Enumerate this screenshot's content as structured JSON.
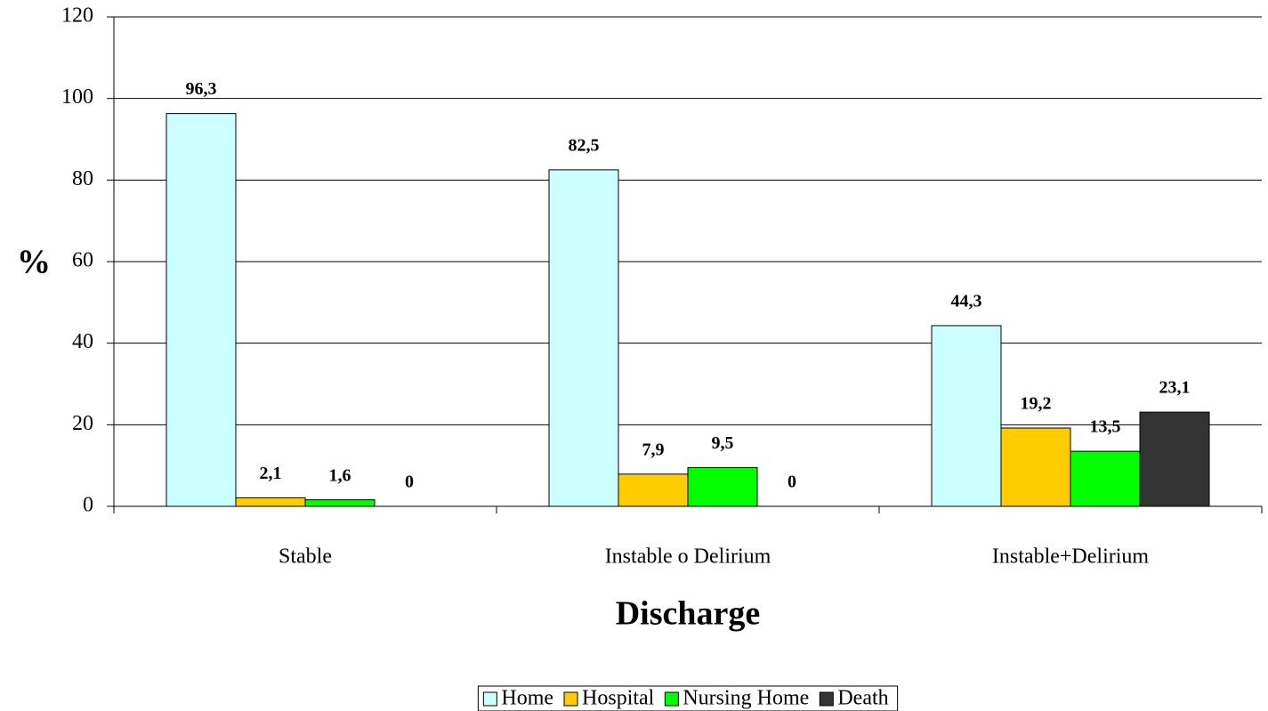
{
  "chart_data": {
    "type": "bar",
    "y_label": "%",
    "x_label": "Discharge",
    "categories": [
      "Stable",
      "Instable o Delirium",
      "Instable+Delirium"
    ],
    "series": [
      {
        "name": "Home",
        "color": "#ccffff",
        "values": [
          96.3,
          82.5,
          44.3
        ],
        "value_labels": [
          "96,3",
          "82,5",
          "44,3"
        ]
      },
      {
        "name": "Hospital",
        "color": "#ffcc00",
        "values": [
          2.1,
          7.9,
          19.2
        ],
        "value_labels": [
          "2,1",
          "7,9",
          "19,2"
        ]
      },
      {
        "name": "Nursing Home",
        "color": "#00ff00",
        "values": [
          1.6,
          9.5,
          13.5
        ],
        "value_labels": [
          "1,6",
          "9,5",
          "13,5"
        ]
      },
      {
        "name": "Death",
        "color": "#333333",
        "values": [
          0,
          0,
          23.1
        ],
        "value_labels": [
          "0",
          "0",
          "23,1"
        ]
      }
    ],
    "ylim": [
      0,
      120
    ],
    "yticks": [
      0,
      20,
      40,
      60,
      80,
      100,
      120
    ],
    "grid": true,
    "legend": "bottom"
  }
}
